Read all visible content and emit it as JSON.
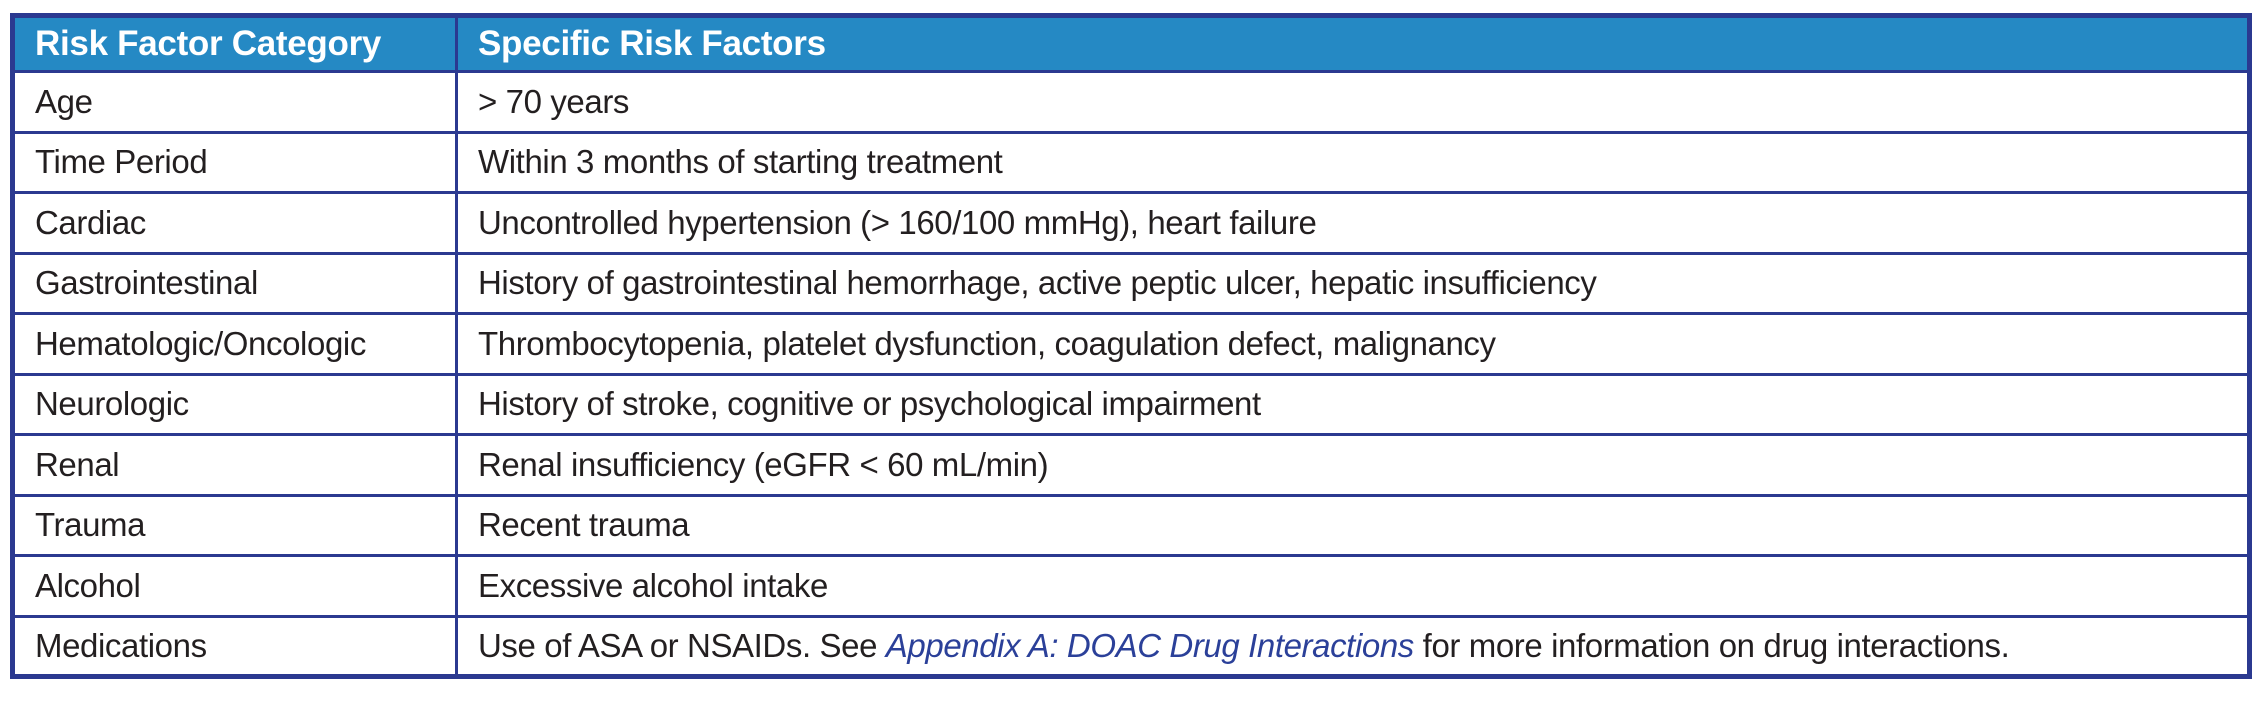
{
  "colors": {
    "header_bg": "#2589C4",
    "border_navy": "#2B3990",
    "text_dark": "#231F20",
    "link_blue": "#2B4099"
  },
  "table": {
    "columns": [
      "Risk Factor Category",
      "Specific Risk Factors"
    ],
    "rows": [
      {
        "category": "Age",
        "factors": "> 70 years"
      },
      {
        "category": "Time Period",
        "factors": "Within 3 months of starting treatment"
      },
      {
        "category": "Cardiac",
        "factors": "Uncontrolled hypertension (> 160/100 mmHg), heart failure"
      },
      {
        "category": "Gastrointestinal",
        "factors": "History of gastrointestinal hemorrhage, active peptic ulcer, hepatic insufficiency"
      },
      {
        "category": "Hematologic/Oncologic",
        "factors": "Thrombocytopenia, platelet dysfunction, coagulation defect, malignancy"
      },
      {
        "category": "Neurologic",
        "factors": "History of stroke, cognitive or psychological impairment"
      },
      {
        "category": "Renal",
        "factors": "Renal insufficiency (eGFR < 60 mL/min)"
      },
      {
        "category": "Trauma",
        "factors": "Recent trauma"
      },
      {
        "category": "Alcohol",
        "factors": "Excessive alcohol intake"
      },
      {
        "category": "Medications",
        "factors_prefix": "Use of ASA or NSAIDs. See ",
        "link_text": "Appendix A: DOAC Drug Interactions",
        "factors_suffix": " for more information on drug interactions."
      }
    ]
  }
}
